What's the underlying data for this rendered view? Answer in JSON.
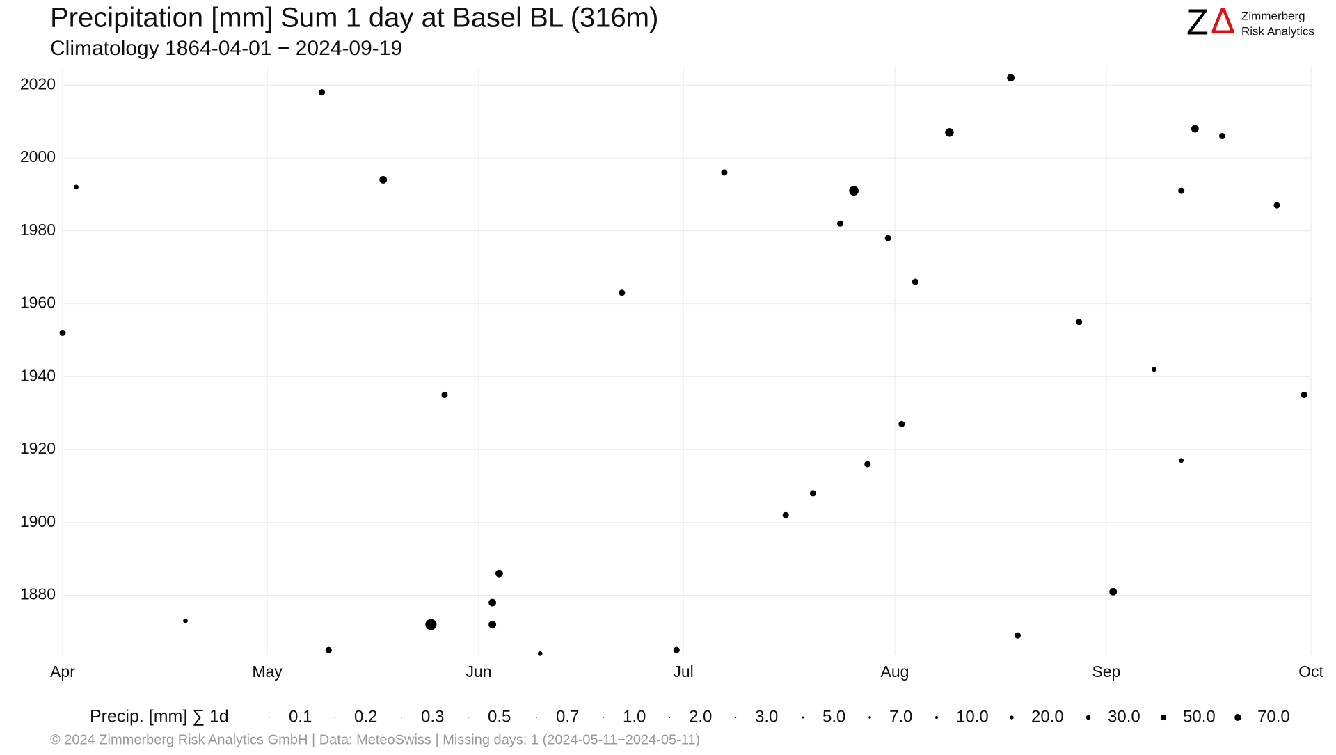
{
  "chart_data": {
    "type": "scatter",
    "title": "Precipitation [mm] Sum 1 day at Basel  BL (316m)",
    "subtitle": "Climatology 1864-04-01 − 2024-09-19",
    "xlim": [
      0,
      183
    ],
    "xticks": [
      {
        "value": 0,
        "label": "Apr"
      },
      {
        "value": 30,
        "label": "May"
      },
      {
        "value": 61,
        "label": "Jun"
      },
      {
        "value": 91,
        "label": "Jul"
      },
      {
        "value": 122,
        "label": "Aug"
      },
      {
        "value": 153,
        "label": "Sep"
      },
      {
        "value": 183,
        "label": "Oct"
      }
    ],
    "ylim": [
      1863.5,
      2025
    ],
    "yticks": [
      1880,
      1900,
      1920,
      1940,
      1960,
      1980,
      2000,
      2020
    ],
    "grid": true,
    "series": [
      {
        "color": "#000000",
        "x": [
          54,
          116,
          130,
          166,
          47,
          139,
          0,
          63,
          63,
          64,
          56,
          182,
          38,
          154,
          140,
          114,
          97,
          121,
          149,
          90,
          39,
          118,
          110,
          164,
          178,
          82,
          125,
          170,
          70,
          106,
          123,
          18,
          160,
          164,
          2
        ],
        "values": [
          1872,
          1991,
          2007,
          2008,
          1994,
          2022,
          1952,
          1878,
          1872,
          1886,
          1935,
          1935,
          2018,
          1881,
          1869,
          1982,
          1996,
          1978,
          1955,
          1865,
          1865,
          1916,
          1908,
          1991,
          1987,
          1963,
          1966,
          2006,
          1864,
          1902,
          1927,
          1873,
          1942,
          1917,
          1992
        ],
        "sizes": [
          70,
          50,
          40,
          30,
          30,
          30,
          20,
          30,
          30,
          30,
          20,
          20,
          20,
          30,
          20,
          20,
          20,
          20,
          20,
          20,
          20,
          20,
          20,
          20,
          20,
          20,
          20,
          20,
          10,
          20,
          20,
          10,
          10,
          10,
          10
        ]
      }
    ],
    "size_legend": {
      "title": "Precip. [mm] ∑ 1d",
      "values": [
        0.1,
        0.2,
        0.3,
        0.5,
        0.7,
        1,
        2,
        3,
        5,
        7,
        10,
        20,
        30,
        50,
        70
      ],
      "value_labels": [
        "0.1",
        "0.2",
        "0.3",
        "0.5",
        "0.7",
        "1.0",
        "2.0",
        "3.0",
        "5.0",
        "7.0",
        "10.0",
        "20.0",
        "30.0",
        "50.0",
        "70.0"
      ]
    }
  },
  "logo": {
    "letters": [
      "Z",
      "Δ"
    ],
    "lines": [
      "Zimmerberg",
      "Risk Analytics"
    ]
  },
  "footer": "©  2024 Zimmerberg Risk Analytics GmbH | Data: MeteoSwiss | Missing days: 1 (2024-05-11−2024-05-11)"
}
